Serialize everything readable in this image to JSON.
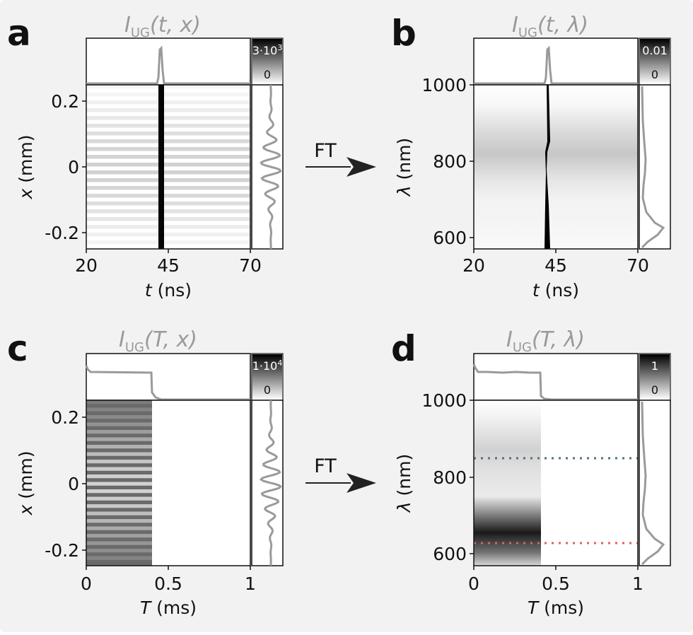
{
  "panels": [
    {
      "id": "a",
      "letter": "a",
      "title": {
        "base": "I",
        "sub": "UG",
        "args": "(t, x)"
      },
      "xlabel": {
        "var": "t",
        "unit": " (ns)"
      },
      "ylabel": {
        "var": "x",
        "unit": " (mm)"
      },
      "xticks": [
        "20",
        "45",
        "70"
      ],
      "yticks": [
        "0.2",
        "0",
        "-0.2"
      ],
      "colorbar": {
        "max": "3·10",
        "max_exp": "3",
        "min": "0"
      }
    },
    {
      "id": "b",
      "letter": "b",
      "title": {
        "base": "I",
        "sub": "UG",
        "args": "(t, λ)"
      },
      "xlabel": {
        "var": "t",
        "unit": " (ns)"
      },
      "ylabel": {
        "var": "λ",
        "unit": " (nm)"
      },
      "xticks": [
        "20",
        "45",
        "70"
      ],
      "yticks": [
        "1000",
        "800",
        "600"
      ],
      "colorbar": {
        "max": "0.01",
        "max_exp": "",
        "min": "0"
      }
    },
    {
      "id": "c",
      "letter": "c",
      "title": {
        "base": "I",
        "sub": "UG",
        "args": "(T, x)"
      },
      "xlabel": {
        "var": "T",
        "unit": " (ms)"
      },
      "ylabel": {
        "var": "x",
        "unit": " (mm)"
      },
      "xticks": [
        "0",
        "0.5",
        "1"
      ],
      "yticks": [
        "0.2",
        "0",
        "-0.2"
      ],
      "colorbar": {
        "max": "1·10",
        "max_exp": "4",
        "min": "0"
      }
    },
    {
      "id": "d",
      "letter": "d",
      "title": {
        "base": "I",
        "sub": "UG",
        "args": "(T, λ)"
      },
      "xlabel": {
        "var": "T",
        "unit": " (ms)"
      },
      "ylabel": {
        "var": "λ",
        "unit": " (nm)"
      },
      "xticks": [
        "0",
        "0.5",
        "1"
      ],
      "yticks": [
        "1000",
        "800",
        "600"
      ],
      "colorbar": {
        "max": "1",
        "max_exp": "",
        "min": "0"
      }
    }
  ],
  "arrows": {
    "top": "FT",
    "bottom": "FT"
  },
  "colors": {
    "profile": "#9a9a9a",
    "blue_dotted": "#4f7284",
    "red_dotted": "#e06060"
  },
  "chart_data": [
    {
      "type": "heatmap",
      "panel": "a",
      "title": "I_UG(t, x)",
      "xlabel": "t (ns)",
      "ylabel": "x (mm)",
      "xlim": [
        20,
        70
      ],
      "ylim": [
        -0.25,
        0.25
      ],
      "xticks": [
        20,
        45,
        70
      ],
      "yticks": [
        0.2,
        0,
        -0.2
      ],
      "colorbar_range": [
        0,
        3000
      ],
      "description_values": {
        "pulse_time_ns": 43
      }
    },
    {
      "type": "heatmap",
      "panel": "b",
      "title": "I_UG(t, λ)",
      "xlabel": "t (ns)",
      "ylabel": "λ (nm)",
      "xlim": [
        20,
        70
      ],
      "ylim": [
        570,
        1000
      ],
      "xticks": [
        20,
        45,
        70
      ],
      "yticks": [
        1000,
        800,
        600
      ],
      "colorbar_range": [
        0,
        0.01
      ],
      "description_values": {
        "pulse_time_ns": 43
      }
    },
    {
      "type": "heatmap",
      "panel": "c",
      "title": "I_UG(T, x)",
      "xlabel": "T (ms)",
      "ylabel": "x (mm)",
      "xlim": [
        0,
        1
      ],
      "ylim": [
        -0.25,
        0.25
      ],
      "xticks": [
        0,
        0.5,
        1
      ],
      "yticks": [
        0.2,
        0,
        -0.2
      ],
      "colorbar_range": [
        0,
        10000
      ],
      "description_values": {
        "gate_end_ms": 0.4
      }
    },
    {
      "type": "heatmap",
      "panel": "d",
      "title": "I_UG(T, λ)",
      "xlabel": "T (ms)",
      "ylabel": "λ (nm)",
      "xlim": [
        0,
        1
      ],
      "ylim": [
        570,
        1000
      ],
      "xticks": [
        0,
        0.5,
        1
      ],
      "yticks": [
        1000,
        800,
        600
      ],
      "colorbar_range": [
        0,
        1
      ],
      "description_values": {
        "gate_end_ms": 0.4,
        "blue_line_nm": 850,
        "red_line_nm": 620
      }
    }
  ]
}
